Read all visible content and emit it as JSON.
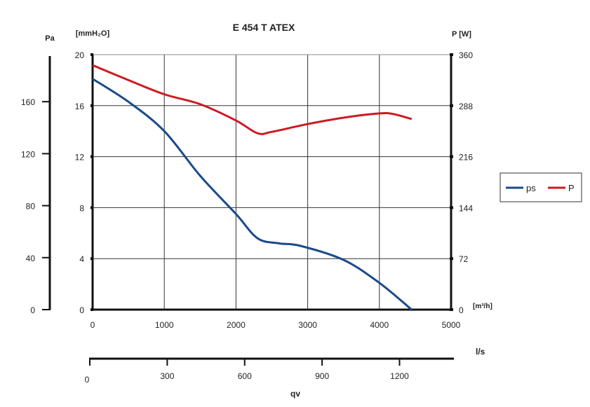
{
  "chart_data": {
    "type": "line",
    "title": "E 454 T ATEX",
    "xlabel": "qv",
    "x_unit_main": "[m³/h]",
    "x_unit_secondary": "l/s",
    "ylabel_left_outer": "Pa",
    "ylabel_left": "[mmH₂O]",
    "ylabel_right": "P [W]",
    "xlim": [
      0,
      5000
    ],
    "ylim_left": [
      0,
      20
    ],
    "ylim_right": [
      0,
      360
    ],
    "x_ticks": [
      0,
      1000,
      2000,
      3000,
      4000,
      5000
    ],
    "y_left_ticks": [
      0,
      4,
      8,
      12,
      16,
      20
    ],
    "y_right_ticks": [
      0,
      72,
      144,
      216,
      288,
      360
    ],
    "pa_ticks": [
      0,
      40,
      80,
      120,
      160
    ],
    "ls_ticks": [
      0,
      300,
      600,
      900,
      1200
    ],
    "grid": true,
    "legend_placement": "right",
    "series": [
      {
        "name": "ps",
        "axis": "left",
        "color": "#1a4a8a",
        "x": [
          0,
          500,
          1000,
          1500,
          2000,
          2300,
          2600,
          2900,
          3500,
          4000,
          4450
        ],
        "values": [
          18.1,
          16.3,
          14,
          10.5,
          7.5,
          5.6,
          5.2,
          5.0,
          3.9,
          2.1,
          0
        ]
      },
      {
        "name": "P",
        "axis": "right",
        "color": "#cc1a22",
        "x": [
          0,
          500,
          1000,
          1500,
          2000,
          2300,
          2500,
          3000,
          3500,
          4000,
          4200,
          4450
        ],
        "values": [
          345,
          324,
          304,
          290,
          267,
          249,
          251,
          262,
          271,
          277,
          276,
          269
        ]
      }
    ]
  }
}
